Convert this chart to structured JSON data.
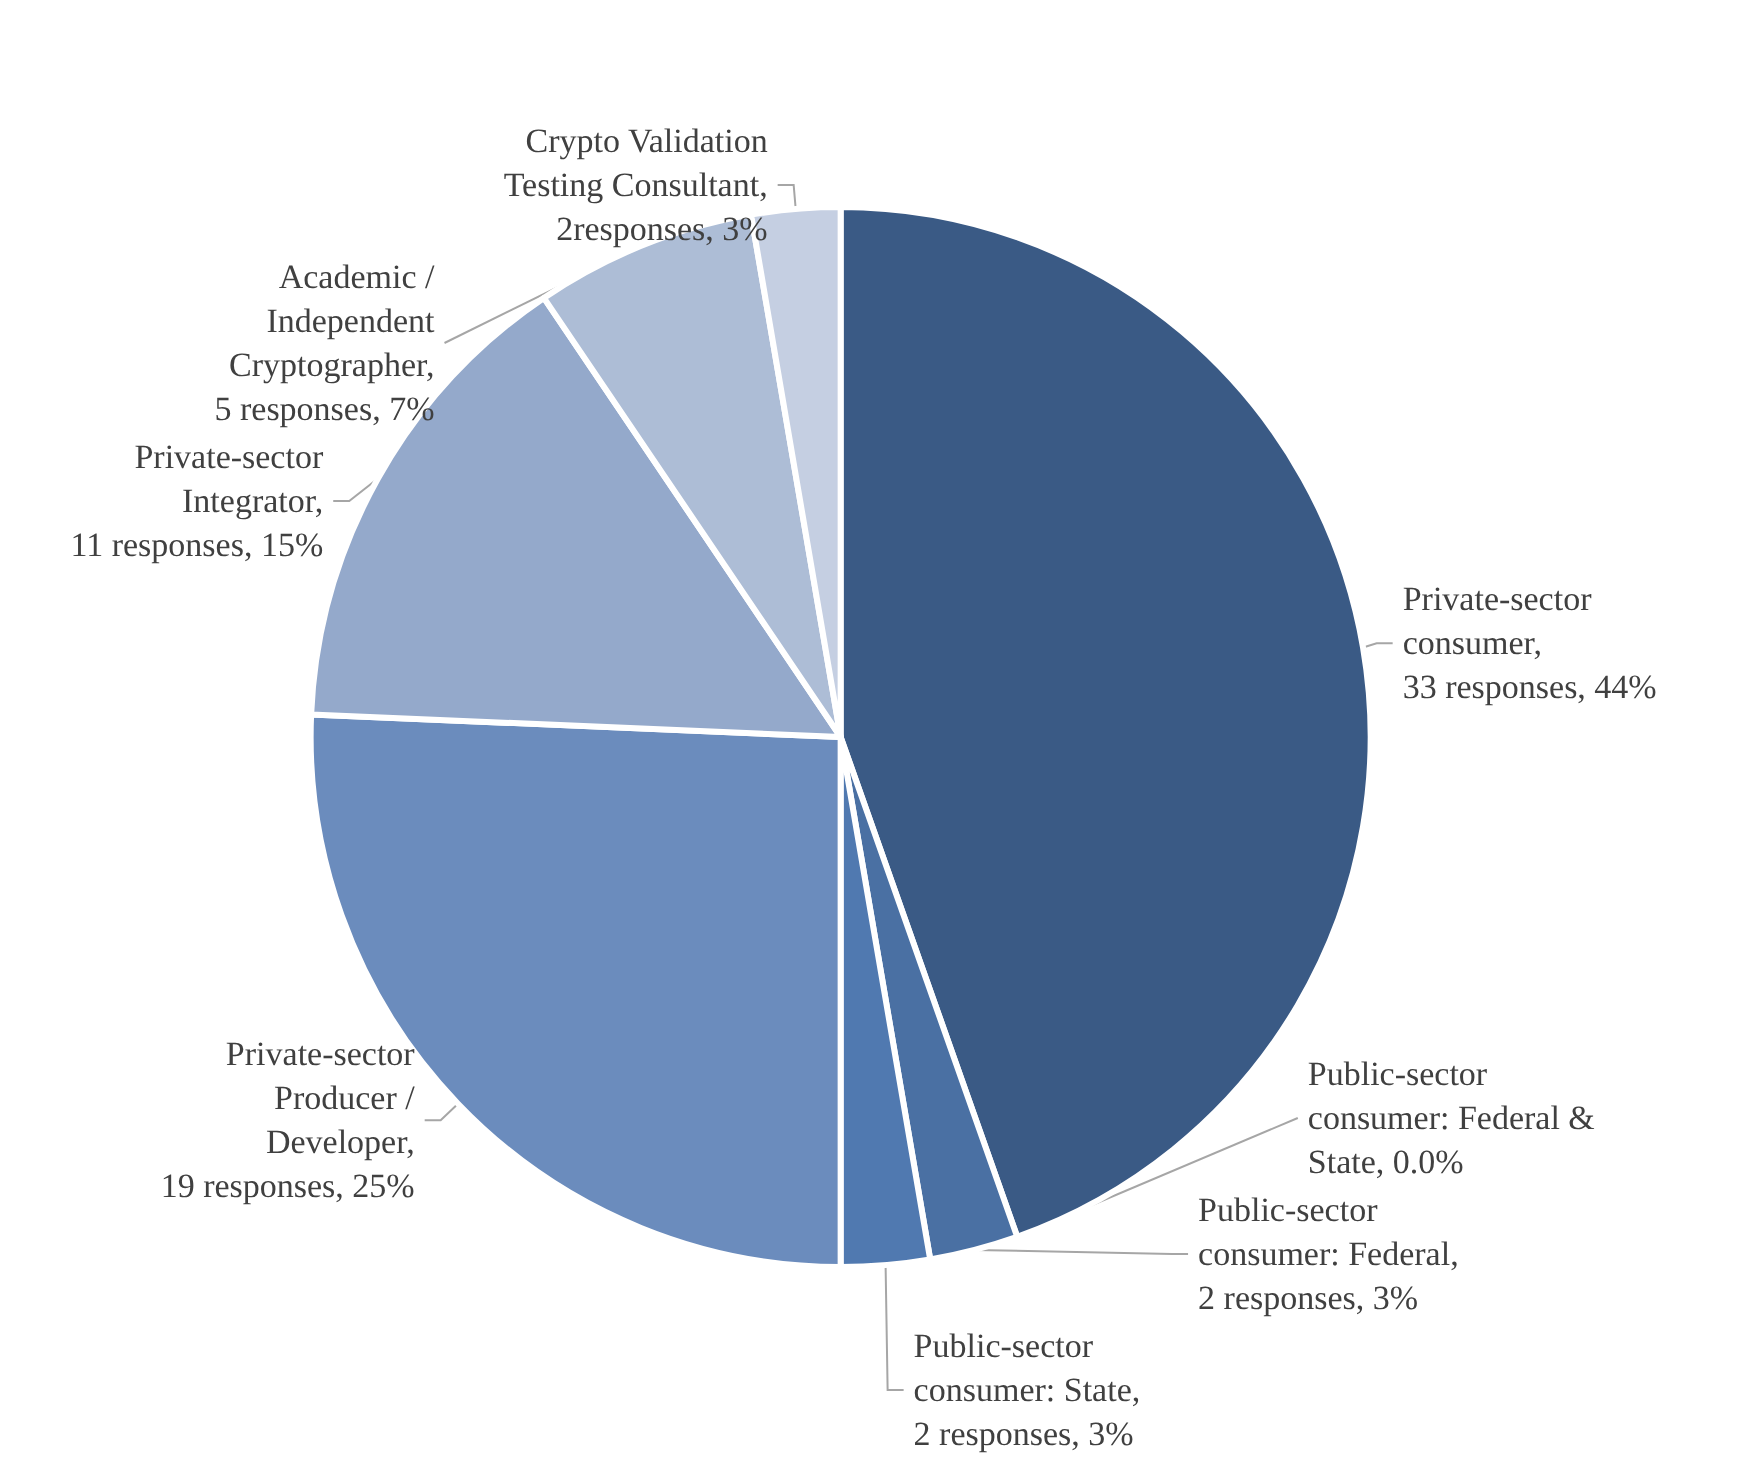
{
  "chart_data": {
    "type": "pie",
    "categories": [
      "Private-sector\nconsumer,\n33 responses, 44%",
      "Public-sector\nconsumer: Federal &\nState, 0.0%",
      "Public-sector\nconsumer: Federal,\n2 responses, 3%",
      "Public-sector\nconsumer: State,\n2 responses, 3%",
      "Private-sector\nProducer /\nDeveloper,\n19 responses, 25%",
      "Private-sector\nIntegrator,\n11 responses, 15%",
      "Academic /\nIndependent\nCryptographer,\n5 responses, 7%",
      "Crypto Validation\nTesting Consultant,\n2responses, 3%"
    ],
    "values": [
      33,
      0,
      2,
      2,
      19,
      11,
      5,
      2
    ],
    "colors": [
      "#3a5a85",
      "#44699a",
      "#4a70a3",
      "#5079b0",
      "#6b8cbd",
      "#94a9cb",
      "#adbdd6",
      "#c5cfe2"
    ]
  }
}
